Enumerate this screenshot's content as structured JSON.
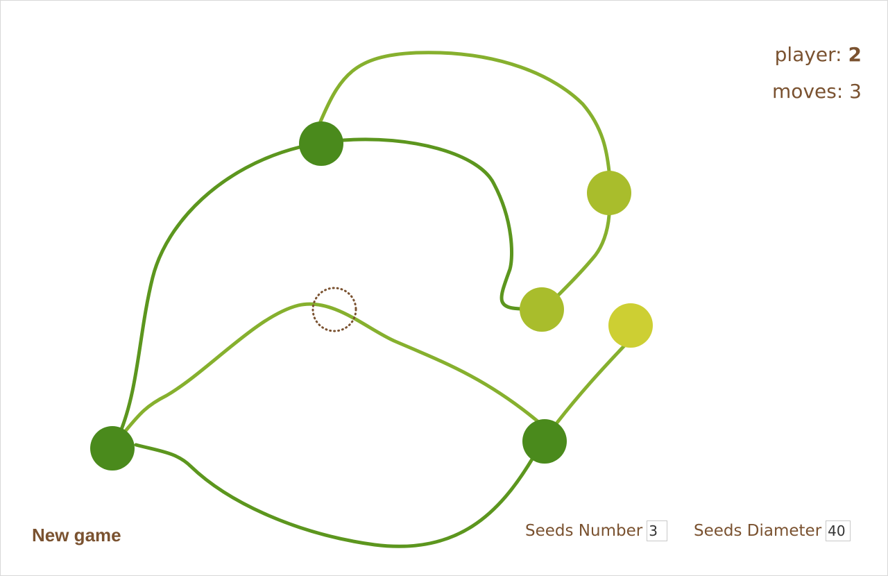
{
  "status": {
    "player_label": "player:",
    "player_value": "2",
    "moves_label": "moves:",
    "moves_value": "3"
  },
  "controls": {
    "new_game_label": "New game",
    "seeds_number_label": "Seeds Number",
    "seeds_number_value": "3",
    "seeds_diameter_label": "Seeds Diameter",
    "seeds_diameter_value": "40"
  },
  "colors": {
    "text": "#7a5230",
    "dark_green": "#4a8a1c",
    "mid_green": "#86b02e",
    "yellow_green": "#a9bd2c",
    "yellow": "#cdcf33",
    "cursor_ring": "#7a5230"
  }
}
